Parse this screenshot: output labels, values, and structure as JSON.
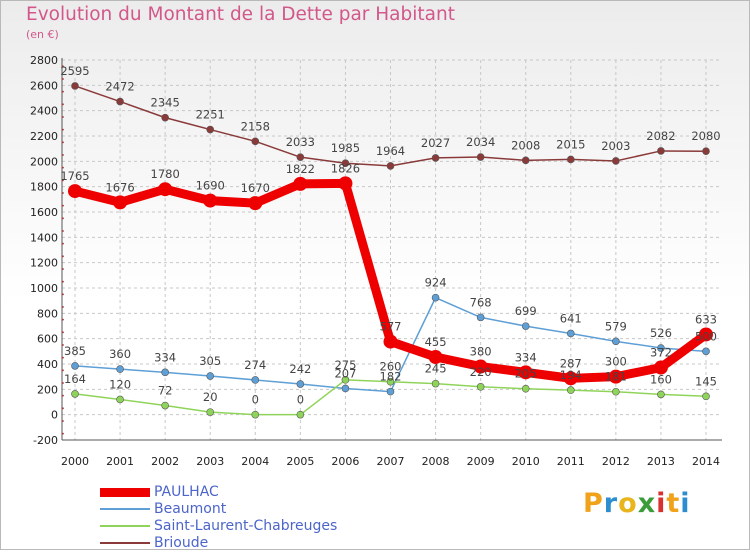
{
  "title": "Evolution du Montant de la Dette par Habitant",
  "subtitle": "(en €)",
  "brand": {
    "text": "Proxiti",
    "letter_colors": [
      "#f0a21a",
      "#2d8ecf",
      "#e8b51c",
      "#3a9d3a",
      "#d93030",
      "#f0a21a",
      "#2d8ecf"
    ]
  },
  "chart_data": {
    "type": "line",
    "x": [
      2000,
      2001,
      2002,
      2003,
      2004,
      2005,
      2006,
      2007,
      2008,
      2009,
      2010,
      2011,
      2012,
      2013,
      2014
    ],
    "yticks": [
      -200,
      0,
      200,
      400,
      600,
      800,
      1000,
      1200,
      1400,
      1600,
      1800,
      2000,
      2200,
      2400,
      2600,
      2800
    ],
    "ylim": [
      -200,
      2800
    ],
    "grid": true,
    "legend_position": "bottom-left",
    "series": [
      {
        "name": "PAULHAC",
        "color": "#ee0000",
        "values": [
          1765,
          1676,
          1780,
          1690,
          1670,
          1822,
          1826,
          577,
          455,
          380,
          334,
          287,
          300,
          372,
          633
        ],
        "labels": [
          "1765",
          "1676",
          "1780",
          "1690",
          "1670",
          "1822",
          "1826",
          "577",
          "455",
          "380",
          "334",
          "287",
          "300",
          "372",
          "633"
        ]
      },
      {
        "name": "Beaumont",
        "color": "#5e9fd6",
        "values": [
          385,
          360,
          334,
          305,
          274,
          242,
          207,
          182,
          924,
          768,
          699,
          641,
          579,
          526,
          500
        ],
        "labels": [
          "385",
          "360",
          "334",
          "305",
          "274",
          "242",
          "207",
          "182",
          "924",
          "768",
          "699",
          "641",
          "579",
          "526",
          "500"
        ]
      },
      {
        "name": "Saint-Laurent-Chabreuges",
        "color": "#8fd45a",
        "values": [
          164,
          120,
          72,
          20,
          0,
          0,
          275,
          260,
          245,
          220,
          205,
          194,
          181,
          160,
          145
        ],
        "labels": [
          "164",
          "120",
          "72",
          "20",
          "0",
          "0",
          "275",
          "260",
          "245",
          "220",
          "205",
          "194",
          "181",
          "160",
          "145"
        ]
      },
      {
        "name": "Brioude",
        "color": "#8b3a3a",
        "values": [
          2595,
          2472,
          2345,
          2251,
          2158,
          2033,
          1985,
          1964,
          2027,
          2034,
          2008,
          2015,
          2003,
          2082,
          2080
        ],
        "labels": [
          "2595",
          "2472",
          "2345",
          "2251",
          "2158",
          "2033",
          "1985",
          "1964",
          "2027",
          "2034",
          "2008",
          "2015",
          "2003",
          "2082",
          "2080"
        ]
      }
    ]
  }
}
